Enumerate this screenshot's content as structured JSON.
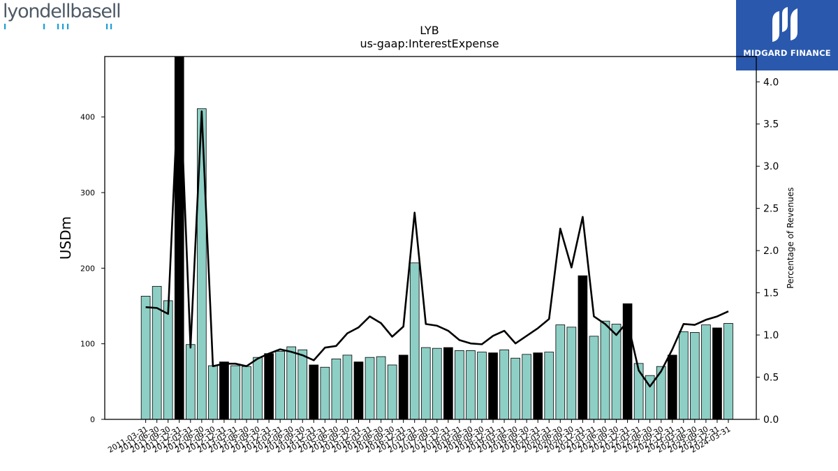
{
  "logos": {
    "left_text": "lyondellbasell",
    "right_text": "MIDGARD FINANCE"
  },
  "chart_data": {
    "type": "bar",
    "title": "LYB",
    "subtitle": "us-gaap:InterestExpense",
    "ylabel": "USDm",
    "y2label": "Percentage of Revenues",
    "ylim": [
      0,
      480
    ],
    "y2lim": [
      0,
      4.3
    ],
    "yticks": [
      0,
      100,
      200,
      300,
      400
    ],
    "y2ticks": [
      0.0,
      0.5,
      1.0,
      1.5,
      2.0,
      2.5,
      3.0,
      3.5,
      4.0
    ],
    "bar_color": "#8ecfc5",
    "highlight_color": "#000000",
    "line_color": "#000000",
    "categories": [
      "2011-03-31",
      "2011-06-30",
      "2011-09-30",
      "2011-12-31",
      "2012-03-31",
      "2012-06-30",
      "2012-09-30",
      "2012-12-31",
      "2013-03-31",
      "2013-06-30",
      "2013-09-30",
      "2013-12-31",
      "2014-03-31",
      "2014-06-30",
      "2014-09-30",
      "2014-12-31",
      "2015-03-31",
      "2015-06-30",
      "2015-09-30",
      "2015-12-31",
      "2016-03-31",
      "2016-06-30",
      "2016-09-30",
      "2016-12-31",
      "2017-03-31",
      "2017-06-30",
      "2017-09-30",
      "2017-12-31",
      "2018-03-31",
      "2018-06-30",
      "2018-09-30",
      "2018-12-31",
      "2019-03-31",
      "2019-06-30",
      "2019-09-30",
      "2019-12-31",
      "2020-03-31",
      "2020-06-30",
      "2020-09-30",
      "2020-12-31",
      "2021-03-31",
      "2021-06-30",
      "2021-09-30",
      "2021-12-31",
      "2022-03-31",
      "2022-06-30",
      "2022-09-30",
      "2022-12-31",
      "2023-03-31",
      "2023-06-30",
      "2023-09-30",
      "2023-12-31",
      "2024-03-31"
    ],
    "tick_labels": [
      "2011-03-31",
      "2011-06-30",
      "2011-09-30",
      "2011-12-31",
      "2012-03-31",
      "2012-06-30",
      "2012-09-30",
      "2012-12-31",
      "2013-03-31",
      "2013-06-30",
      "2013-09-30",
      "2013-12-31",
      "2014-03-31",
      "2014-06-30",
      "2014-09-30",
      "2014-12-31",
      "2015-03-31",
      "2015-06-30",
      "2015-09-30",
      "2015-12-31",
      "2016-03-31",
      "2016-06-30",
      "2016-09-30",
      "2016-12-31",
      "2017-03-31",
      "2017-06-30",
      "2017-09-30",
      "2017-12-31",
      "2018-03-31",
      "2018-06-30",
      "2018-09-30",
      "2018-12-31",
      "2019-03-31",
      "2019-06-30",
      "2019-09-30",
      "2019-12-31",
      "2020-03-31",
      "2020-06-30",
      "2020-09-30",
      "2020-12-31",
      "2021-03-31",
      "2021-06-30",
      "2021-09-30",
      "2021-12-31",
      "2022-03-31",
      "2022-06-30",
      "2022-09-30",
      "2022-12-31",
      "2023-03-31",
      "2023-06-30",
      "2023-09-30",
      "2023-12-31",
      "2024-03-31"
    ],
    "series": [
      {
        "values": [
          163,
          176,
          157,
          481,
          99,
          411,
          71,
          76,
          71,
          70,
          82,
          87,
          90,
          96,
          92,
          72,
          69,
          80,
          85,
          76,
          82,
          83,
          72,
          85,
          207,
          95,
          94,
          95,
          91,
          91,
          89,
          88,
          92,
          81,
          86,
          88,
          89,
          125,
          122,
          190,
          110,
          130,
          126,
          153,
          74,
          58,
          70,
          85,
          116,
          115,
          125,
          121,
          127
        ]
      },
      {
        "values": [
          1.33,
          1.32,
          1.25,
          4.2,
          0.85,
          3.65,
          0.63,
          0.66,
          0.66,
          0.63,
          0.72,
          0.78,
          0.83,
          0.8,
          0.76,
          0.7,
          0.85,
          0.87,
          1.02,
          1.09,
          1.22,
          1.14,
          0.98,
          1.1,
          2.45,
          1.13,
          1.11,
          1.05,
          0.94,
          0.9,
          0.89,
          0.99,
          1.05,
          0.9,
          0.99,
          1.08,
          1.19,
          2.26,
          1.8,
          2.4,
          1.22,
          1.13,
          1.0,
          1.16,
          0.58,
          0.39,
          0.57,
          0.83,
          1.13,
          1.12,
          1.18,
          1.22,
          1.28
        ]
      }
    ],
    "highlight_indices": [
      3,
      7,
      11,
      15,
      19,
      23,
      27,
      31,
      35,
      39,
      43,
      47,
      51
    ]
  }
}
